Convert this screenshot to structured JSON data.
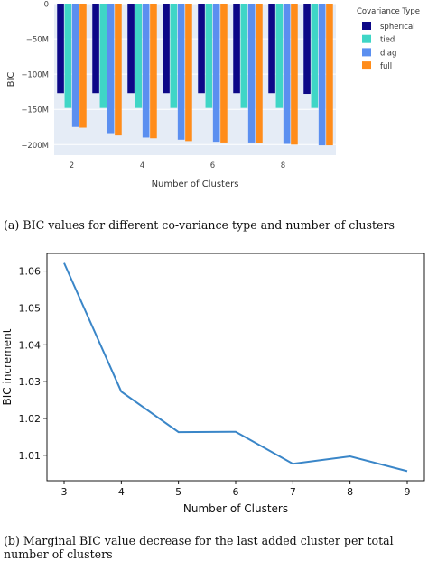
{
  "captions": {
    "a": "(a) BIC values for different co-variance type and number of clusters",
    "b": "(b) Marginal BIC value decrease for the last added cluster per total number of clusters"
  },
  "chart_data": [
    {
      "type": "bar",
      "xlabel": "Number of Clusters",
      "ylabel": "BIC",
      "legend_title": "Covariance Type",
      "legend_placement": "top-right",
      "categories": [
        2,
        3,
        4,
        5,
        6,
        7,
        8,
        9
      ],
      "x_ticks": [
        "2",
        "4",
        "6",
        "8"
      ],
      "y_ticks": [
        "0",
        "−50M",
        "−100M",
        "−150M",
        "−200M"
      ],
      "y_tick_values": [
        0,
        -50,
        -100,
        -150,
        -200
      ],
      "ylim": [
        -215,
        0
      ],
      "y_unit": "M",
      "grid": true,
      "series": [
        {
          "name": "spherical",
          "color": "#0d0887",
          "values": [
            -127,
            -127,
            -127,
            -127,
            -127,
            -127,
            -127,
            -128
          ]
        },
        {
          "name": "tied",
          "color": "#3fd6c6",
          "values": [
            -148,
            -148,
            -148,
            -148,
            -148,
            -148,
            -148,
            -148
          ]
        },
        {
          "name": "diag",
          "color": "#5b8ff0",
          "values": [
            -175,
            -185,
            -190,
            -193,
            -196,
            -197,
            -199,
            -201
          ]
        },
        {
          "name": "full",
          "color": "#ff8c1a",
          "values": [
            -176,
            -187,
            -191,
            -195,
            -197,
            -198,
            -200,
            -201
          ]
        }
      ]
    },
    {
      "type": "line",
      "xlabel": "Number of Clusters",
      "ylabel": "BIC increment",
      "x": [
        3,
        4,
        5,
        6,
        7,
        8,
        9
      ],
      "y": [
        1.0622,
        1.0273,
        1.0163,
        1.0164,
        1.0077,
        1.0097,
        1.0057
      ],
      "x_ticks": [
        "3",
        "4",
        "5",
        "6",
        "7",
        "8",
        "9"
      ],
      "y_ticks": [
        "1.01",
        "1.02",
        "1.03",
        "1.04",
        "1.05",
        "1.06"
      ],
      "y_tick_values": [
        1.01,
        1.02,
        1.03,
        1.04,
        1.05,
        1.06
      ],
      "xlim": [
        2.7,
        9.3
      ],
      "ylim": [
        1.0031,
        1.0648
      ],
      "grid": false,
      "line_color": "#3a86c8"
    }
  ]
}
